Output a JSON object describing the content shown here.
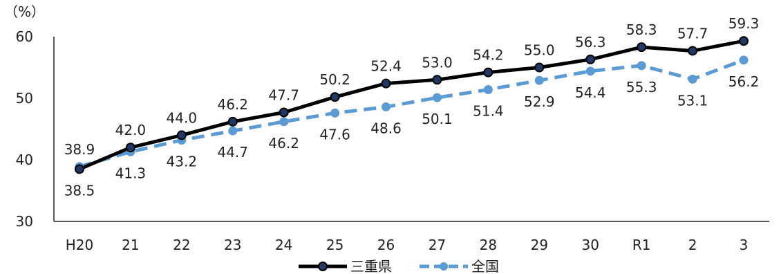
{
  "chart_data": {
    "type": "line",
    "ylabel": "（%）",
    "ylim": [
      30,
      60
    ],
    "yticks": [
      "30",
      "40",
      "50",
      "60"
    ],
    "categories": [
      "H20",
      "21",
      "22",
      "23",
      "24",
      "25",
      "26",
      "27",
      "28",
      "29",
      "30",
      "R1",
      "2",
      "3"
    ],
    "grid": false,
    "legend_position": "bottom",
    "series": [
      {
        "name": "三重県",
        "color": "#000000",
        "marker_color": "#1f3864",
        "style": "solid",
        "values": [
          38.5,
          42.0,
          44.0,
          46.2,
          47.7,
          50.2,
          52.4,
          53.0,
          54.2,
          55.0,
          56.3,
          58.3,
          57.7,
          59.3
        ],
        "labels": [
          "38.5",
          "42.0",
          "44.0",
          "46.2",
          "47.7",
          "50.2",
          "52.4",
          "53.0",
          "54.2",
          "55.0",
          "56.3",
          "58.3",
          "57.7",
          "59.3"
        ]
      },
      {
        "name": "全国",
        "color": "#5b9bd5",
        "marker_color": "#5b9bd5",
        "style": "dashed",
        "values": [
          38.9,
          41.3,
          43.2,
          44.7,
          46.2,
          47.6,
          48.6,
          50.1,
          51.4,
          52.9,
          54.4,
          55.3,
          53.1,
          56.2
        ],
        "labels": [
          "38.9",
          "41.3",
          "43.2",
          "44.7",
          "46.2",
          "47.6",
          "48.6",
          "50.1",
          "51.4",
          "52.9",
          "54.4",
          "55.3",
          "53.1",
          "56.2"
        ]
      }
    ]
  }
}
